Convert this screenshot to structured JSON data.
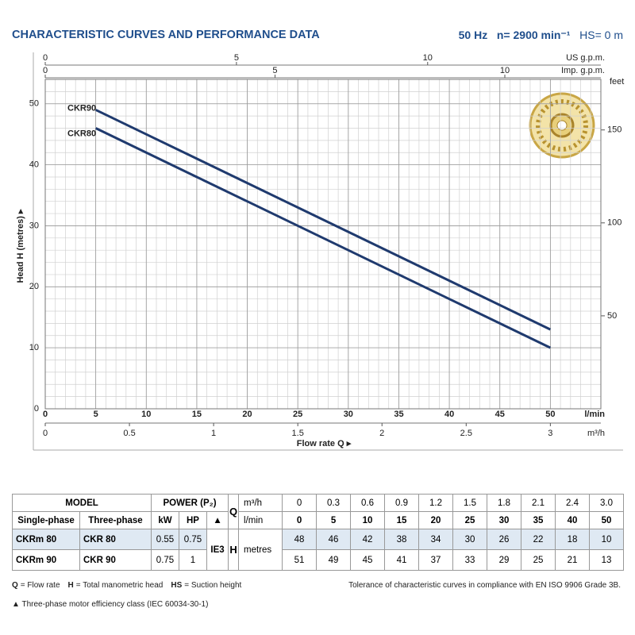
{
  "header": {
    "title": "CHARACTERISTIC CURVES AND PERFORMANCE DATA",
    "freq": "50 Hz",
    "speed": "n= 2900 min⁻¹",
    "hs": "HS= 0 m"
  },
  "chart_data": {
    "type": "line",
    "x": [
      5,
      10,
      15,
      20,
      25,
      30,
      35,
      40,
      45,
      50
    ],
    "series": [
      {
        "name": "CKR90",
        "color": "#1f3a6e",
        "values": [
          49,
          45,
          41,
          37,
          33,
          29,
          25,
          21,
          17,
          13
        ]
      },
      {
        "name": "CKR80",
        "color": "#1f3a6e",
        "values": [
          46,
          42,
          38,
          34,
          30,
          26,
          22,
          18,
          14,
          10
        ]
      }
    ],
    "xlabel": "l/min",
    "ylabel": "Head H (metres) ▸",
    "xtitle": "Flow rate Q ▸",
    "xlim": [
      0,
      55
    ],
    "xticks": [
      0,
      5,
      10,
      15,
      20,
      25,
      30,
      35,
      40,
      45,
      50
    ],
    "ylim": [
      0,
      54
    ],
    "yticks": [
      0,
      10,
      20,
      30,
      40,
      50
    ],
    "y2lim": [
      0,
      177.2
    ],
    "y2ticks": [
      50,
      100,
      150
    ],
    "y2label": "feet",
    "secondary_axes": [
      {
        "label": "US g.p.m.",
        "position": "top",
        "lim": [
          0,
          14.53
        ],
        "ticks": [
          0,
          5,
          10
        ]
      },
      {
        "label": "Imp. g.p.m.",
        "position": "top",
        "lim": [
          0,
          12.09
        ],
        "ticks": [
          0,
          5,
          10
        ]
      },
      {
        "label": "m³/h",
        "position": "bottom",
        "lim": [
          0,
          3.3
        ],
        "ticks": [
          0,
          0.5,
          1,
          1.5,
          2,
          2.5,
          3
        ]
      }
    ],
    "grid": true
  },
  "table": {
    "model": "MODEL",
    "power": "POWER (P₂)",
    "q": "Q",
    "h": "H",
    "ie": "IE3",
    "q_units": [
      "m³/h",
      "l/min"
    ],
    "h_unit": "metres",
    "columns": [
      "Single-phase",
      "Three-phase",
      "kW",
      "HP",
      "▲"
    ],
    "q_m3h": [
      "0",
      "0.3",
      "0.6",
      "0.9",
      "1.2",
      "1.5",
      "1.8",
      "2.1",
      "2.4",
      "3.0"
    ],
    "q_lmin": [
      "0",
      "5",
      "10",
      "15",
      "20",
      "25",
      "30",
      "35",
      "40",
      "50"
    ],
    "rows": [
      {
        "single": "CKRm 80",
        "three": "CKR 80",
        "kw": "0.55",
        "hp": "0.75",
        "head": [
          "48",
          "46",
          "42",
          "38",
          "34",
          "30",
          "26",
          "22",
          "18",
          "10"
        ]
      },
      {
        "single": "CKRm 90",
        "three": "CKR 90",
        "kw": "0.75",
        "hp": "1",
        "head": [
          "51",
          "49",
          "45",
          "41",
          "37",
          "33",
          "29",
          "25",
          "21",
          "13"
        ]
      }
    ]
  },
  "footnotes": {
    "legend": [
      {
        "key": "Q",
        "text": "= Flow rate"
      },
      {
        "key": "H",
        "text": "= Total manometric head"
      },
      {
        "key": "HS",
        "text": "= Suction height"
      }
    ],
    "tolerance": "Tolerance of characteristic curves in compliance with EN ISO 9906 Grade 3B.",
    "efficiency": "▲ Three-phase motor efficiency class (IEC 60034-30-1)"
  }
}
